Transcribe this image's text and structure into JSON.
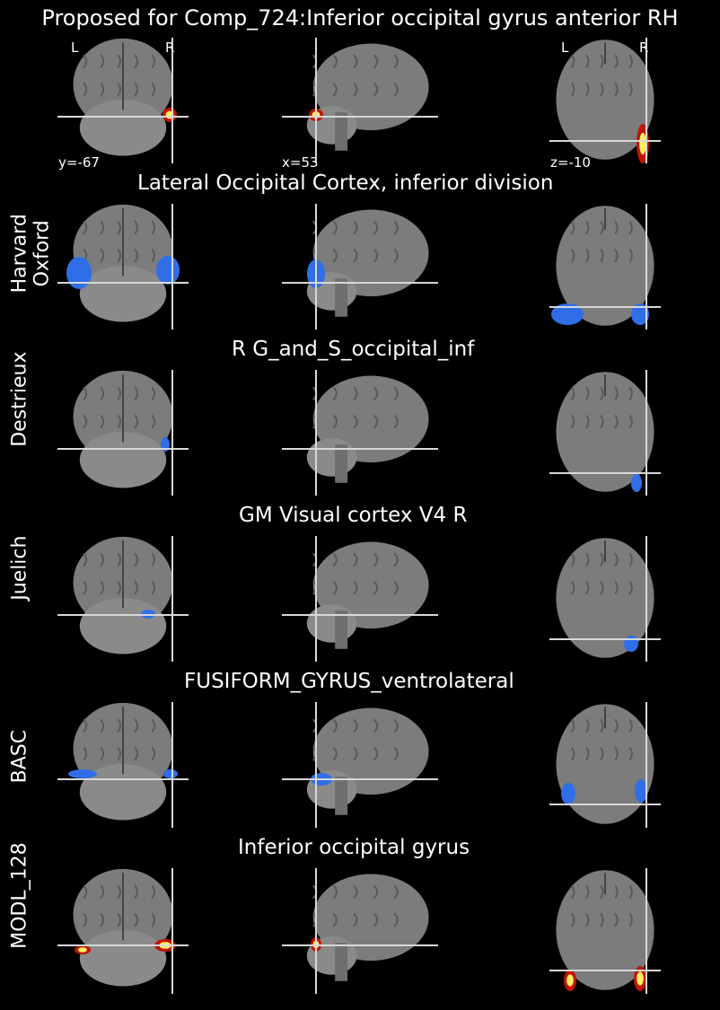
{
  "figure": {
    "title": "Proposed for Comp_724:Inferior occipital gyrus anterior RH",
    "orientation": {
      "left": "L",
      "right": "R"
    },
    "coords": {
      "coronal": "y=-67",
      "sagittal": "x=53",
      "axial": "z=-10"
    }
  },
  "rows": [
    {
      "atlas": "",
      "region": "",
      "color": "heat"
    },
    {
      "atlas": "Harvard\nOxford",
      "region": "Lateral Occipital Cortex, inferior division",
      "color": "#2f6ee8"
    },
    {
      "atlas": "Destrieux",
      "region": "R G_and_S_occipital_inf",
      "color": "#2f6ee8"
    },
    {
      "atlas": "Juelich",
      "region": "GM Visual cortex V4 R",
      "color": "#2f6ee8"
    },
    {
      "atlas": "BASC",
      "region": "FUSIFORM_GYRUS_ventrolateral",
      "color": "#2f6ee8"
    },
    {
      "atlas": "MODL_128",
      "region": "Inferior occipital gyrus",
      "color": "heat"
    }
  ],
  "colors": {
    "background": "#000000",
    "crosshair": "#d8d8d8",
    "atlas_blue": "#2f6ee8",
    "heat_low": "#c0140a",
    "heat_high": "#fff060"
  }
}
